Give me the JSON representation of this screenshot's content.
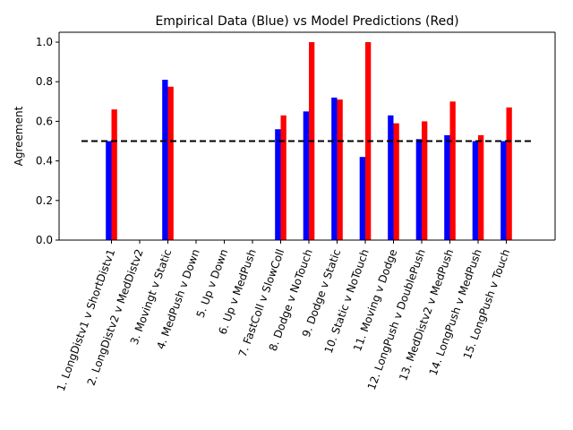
{
  "chart_data": {
    "type": "bar",
    "title": "Empirical Data (Blue) vs Model Predictions (Red)",
    "xlabel": "",
    "ylabel": "Agreement",
    "ylim": [
      0,
      1.05
    ],
    "yticks": [
      "0.0",
      "0.2",
      "0.4",
      "0.6",
      "0.8",
      "1.0"
    ],
    "grid": false,
    "legend": "none",
    "reference_line": {
      "y": 0.5,
      "style": "dashed",
      "color": "#000000"
    },
    "categories": [
      "1. LongDistv1 v ShortDistv1",
      "2. LongDistv2 v MedDistv2",
      "3. Movingt v Static",
      "4. MedPush v Down",
      "5. Up v Down",
      "6. Up v MedPush",
      "7. FastColl v SlowColl",
      "8. Dodge v NoTouch",
      "9. Dodge v Static",
      "10. Static v NoTouch",
      "11. Moving v Dodge",
      "12. LongPush v DoublePush",
      "13. MedDistv2 v MedPush",
      "14. LongPush v MedPush",
      "15. LongPush v Touch"
    ],
    "series": [
      {
        "name": "",
        "color": "#0000ff",
        "values": [
          0.5,
          0,
          0.81,
          0,
          0,
          0,
          0.56,
          0.65,
          0.72,
          0.42,
          0.63,
          0.51,
          0.53,
          0.5,
          0.5
        ]
      },
      {
        "name": "",
        "color": "#ff0000",
        "values": [
          0.66,
          0,
          0.775,
          0,
          0,
          0,
          0.63,
          1.0,
          0.71,
          1.0,
          0.59,
          0.6,
          0.7,
          0.53,
          0.67
        ]
      }
    ]
  }
}
